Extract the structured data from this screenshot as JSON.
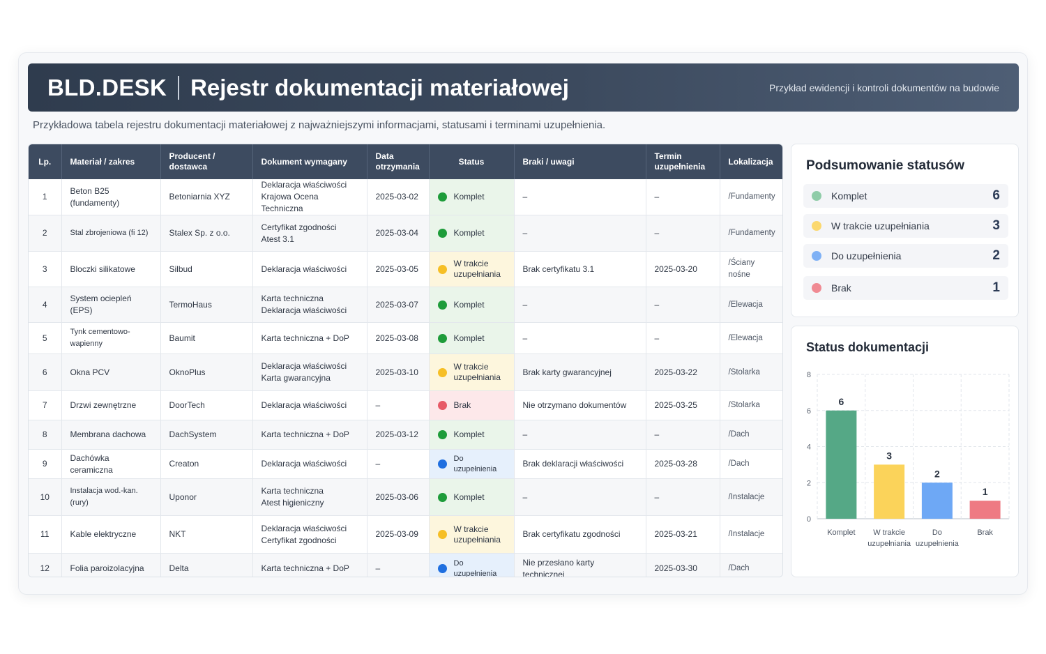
{
  "header": {
    "brand": "BLD.DESK",
    "title": "Rejestr dokumentacji materiałowej",
    "subtitle": "Przykład ewidencji i kontroli dokumentów na budowie"
  },
  "intro": "Przykładowa tabela rejestru dokumentacji materiałowej z najważniejszymi informacjami, statusami i terminami uzupełnienia.",
  "table": {
    "columns": [
      "Lp.",
      "Materiał / zakres",
      "Producent / dostawca",
      "Dokument wymagany",
      "Data otrzymania",
      "Status",
      "Braki / uwagi",
      "Termin uzupełnienia",
      "Lokalizacja"
    ],
    "rows": [
      {
        "lp": "1",
        "material": "Beton B25 (fundamenty)",
        "producer": "Betoniarnia XYZ",
        "doc1": "Deklaracja właściwości",
        "doc2": "Krajowa Ocena Techniczna",
        "date": "2025-03-02",
        "status": "Komplet",
        "status_key": "komplet",
        "notes": "–",
        "deadline": "–",
        "location": "/Fundamenty"
      },
      {
        "lp": "2",
        "material": "Stal zbrojeniowa (fi 12)",
        "producer": "Stalex Sp. z o.o.",
        "doc1": "Certyfikat zgodności",
        "doc2": "Atest 3.1",
        "date": "2025-03-04",
        "status": "Komplet",
        "status_key": "komplet",
        "notes": "–",
        "deadline": "–",
        "location": "/Fundamenty"
      },
      {
        "lp": "3",
        "material": "Bloczki silikatowe",
        "producer": "Silbud",
        "doc1": "Deklaracja właściwości",
        "doc2": "",
        "date": "2025-03-05",
        "status": "W trakcie uzupełniania",
        "status_key": "trakcie",
        "notes": "Brak certyfikatu 3.1",
        "deadline": "2025-03-20",
        "location": "/Ściany nośne"
      },
      {
        "lp": "4",
        "material": "System ociepleń (EPS)",
        "producer": "TermoHaus",
        "doc1": "Karta techniczna",
        "doc2": "Deklaracja właściwości",
        "date": "2025-03-07",
        "status": "Komplet",
        "status_key": "komplet",
        "notes": "–",
        "deadline": "–",
        "location": "/Elewacja"
      },
      {
        "lp": "5",
        "material": "Tynk cementowo-wapienny",
        "producer": "Baumit",
        "doc1": "Karta techniczna + DoP",
        "doc2": "",
        "date": "2025-03-08",
        "status": "Komplet",
        "status_key": "komplet",
        "notes": "–",
        "deadline": "–",
        "location": "/Elewacja"
      },
      {
        "lp": "6",
        "material": "Okna PCV",
        "producer": "OknoPlus",
        "doc1": "Deklaracja właściwości",
        "doc2": "Karta gwarancyjna",
        "date": "2025-03-10",
        "status": "W trakcie uzupełniania",
        "status_key": "trakcie",
        "notes": "Brak karty gwarancyjnej",
        "deadline": "2025-03-22",
        "location": "/Stolarka"
      },
      {
        "lp": "7",
        "material": "Drzwi zewnętrzne",
        "producer": "DoorTech",
        "doc1": "Deklaracja właściwości",
        "doc2": "",
        "date": "–",
        "status": "Brak",
        "status_key": "brak",
        "notes": "Nie otrzymano dokumentów",
        "deadline": "2025-03-25",
        "location": "/Stolarka"
      },
      {
        "lp": "8",
        "material": "Membrana dachowa",
        "producer": "DachSystem",
        "doc1": "Karta techniczna + DoP",
        "doc2": "",
        "date": "2025-03-12",
        "status": "Komplet",
        "status_key": "komplet",
        "notes": "–",
        "deadline": "–",
        "location": "/Dach"
      },
      {
        "lp": "9",
        "material": "Dachówka ceramiczna",
        "producer": "Creaton",
        "doc1": "Deklaracja właściwości",
        "doc2": "",
        "date": "–",
        "status": "Do uzupełnienia",
        "status_key": "do",
        "notes": "Brak deklaracji właściwości",
        "deadline": "2025-03-28",
        "location": "/Dach"
      },
      {
        "lp": "10",
        "material": "Instalacja wod.-kan. (rury)",
        "producer": "Uponor",
        "doc1": "Karta techniczna",
        "doc2": "Atest higieniczny",
        "date": "2025-03-06",
        "status": "Komplet",
        "status_key": "komplet",
        "notes": "–",
        "deadline": "–",
        "location": "/Instalacje"
      },
      {
        "lp": "11",
        "material": "Kable elektryczne",
        "producer": "NKT",
        "doc1": "Deklaracja właściwości",
        "doc2": "Certyfikat zgodności",
        "date": "2025-03-09",
        "status": "W trakcie uzupełniania",
        "status_key": "trakcie",
        "notes": "Brak certyfikatu zgodności",
        "deadline": "2025-03-21",
        "location": "/Instalacje"
      },
      {
        "lp": "12",
        "material": "Folia paroizolacyjna",
        "producer": "Delta",
        "doc1": "Karta techniczna + DoP",
        "doc2": "",
        "date": "–",
        "status": "Do uzupełnienia",
        "status_key": "do",
        "notes": "Nie przesłano karty technicznej",
        "deadline": "2025-03-30",
        "location": "/Dach"
      }
    ]
  },
  "summary": {
    "title": "Podsumowanie statusów",
    "items": [
      {
        "label": "Komplet",
        "count": "6",
        "color": "#8fcca8"
      },
      {
        "label": "W trakcie uzupełniania",
        "count": "3",
        "color": "#fbd86e"
      },
      {
        "label": "Do uzupełnienia",
        "count": "2",
        "color": "#7fb1f5"
      },
      {
        "label": "Brak",
        "count": "1",
        "color": "#f08a93"
      }
    ]
  },
  "chart_panel": {
    "title": "Status dokumentacji"
  },
  "chart_data": {
    "type": "bar",
    "title": "Status dokumentacji",
    "categories": [
      "Komplet",
      "W trakcie uzupełniania",
      "Do uzupełnienia",
      "Brak"
    ],
    "values": [
      6,
      3,
      2,
      1
    ],
    "colors": [
      "#55a886",
      "#fbd35a",
      "#6ea8f5",
      "#ee7a83"
    ],
    "yticks": [
      0,
      2,
      4,
      6,
      8
    ],
    "ylim": [
      0,
      8
    ],
    "grid": true,
    "data_labels": true
  },
  "colors": {
    "header_bg": "#2f3c4e",
    "komplet": "#1e9c3a",
    "w_trakcie": "#f6bf26",
    "do_uzupelnienia": "#1f6fe0",
    "brak": "#e75a67"
  }
}
